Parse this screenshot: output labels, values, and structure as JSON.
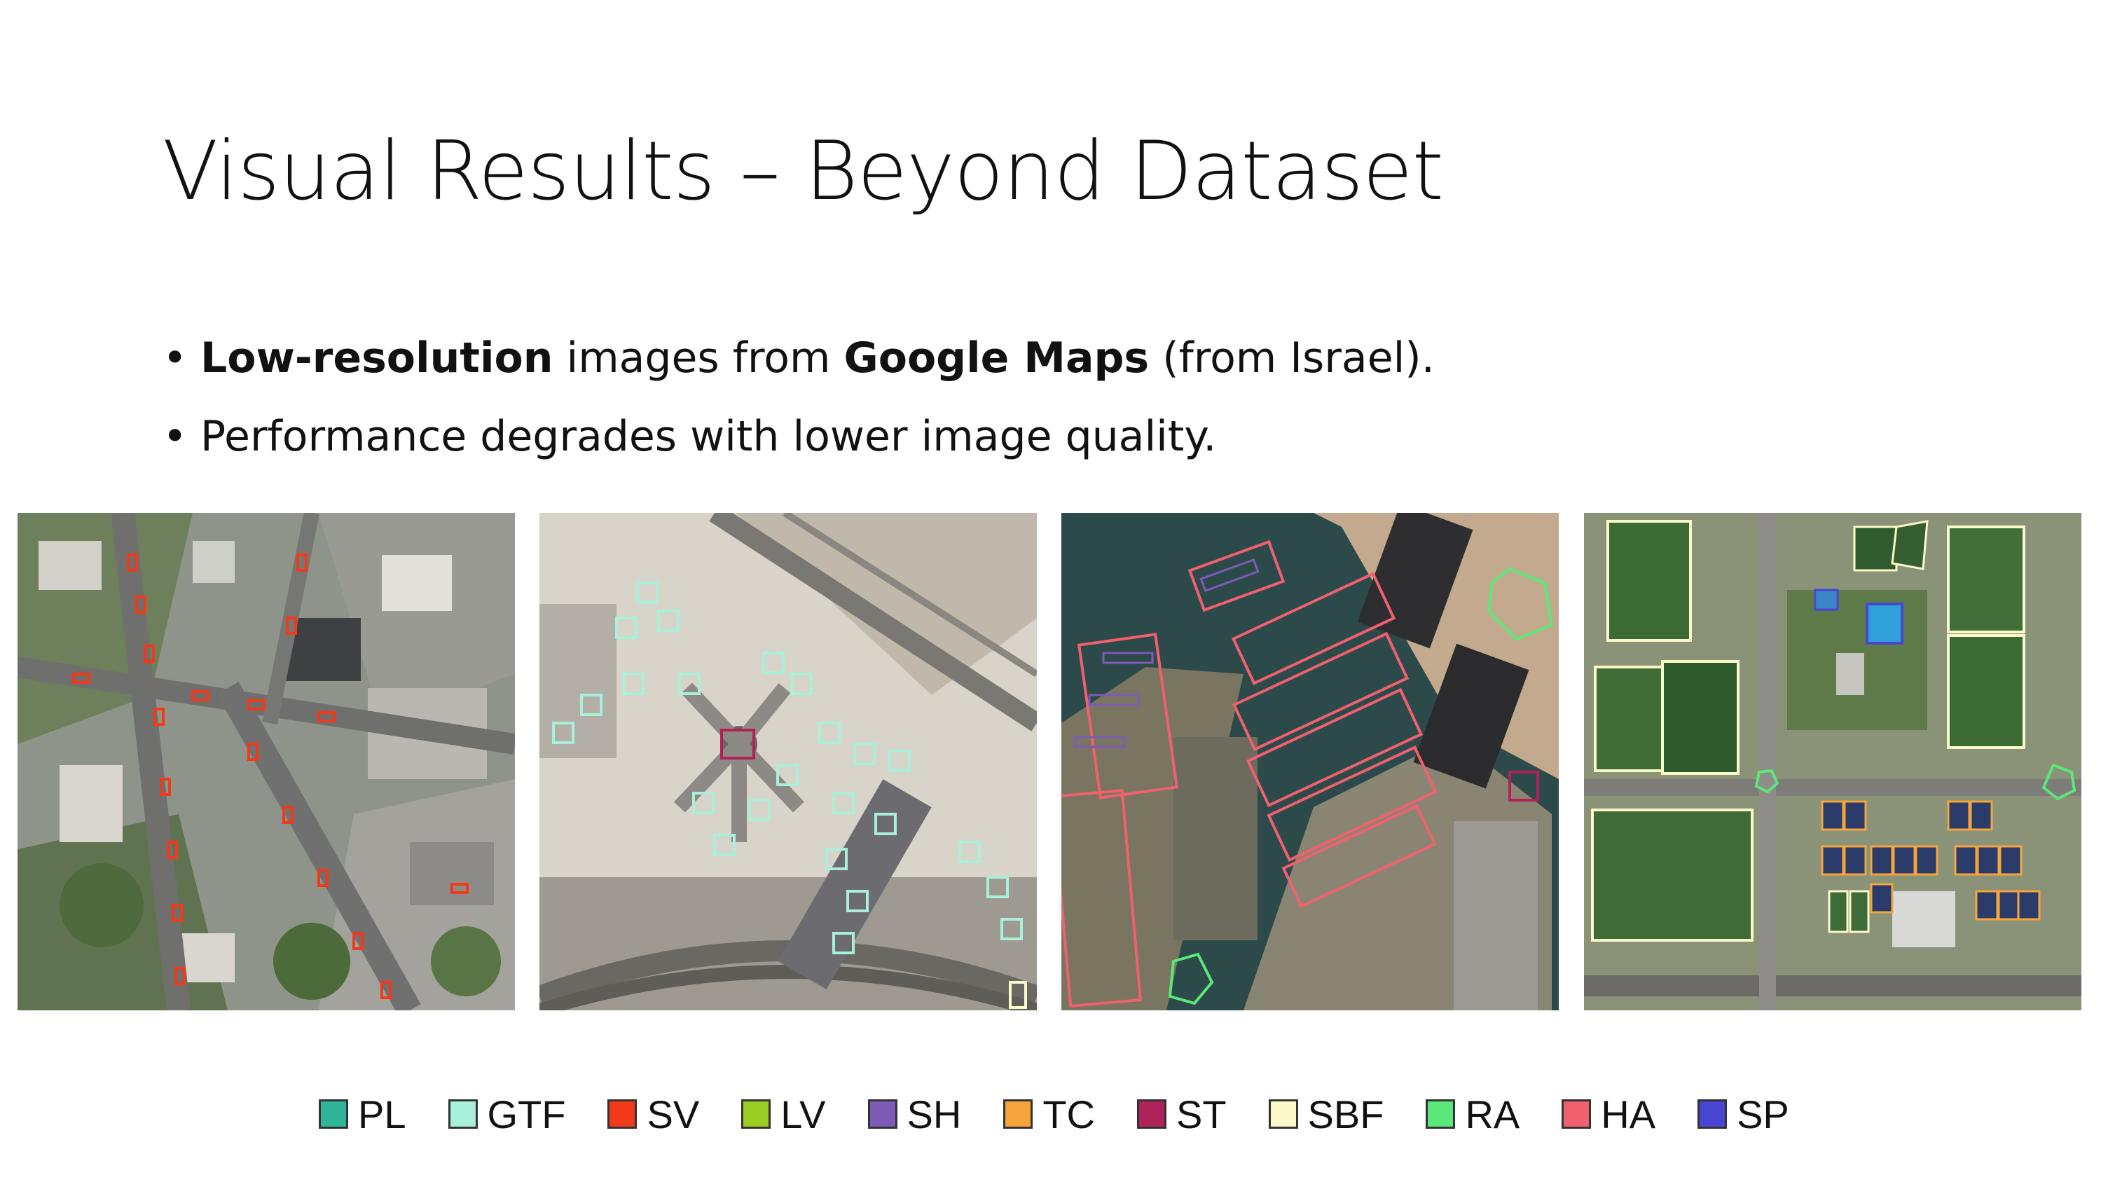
{
  "slide": {
    "title": "Visual Results – Beyond Dataset",
    "bullets": [
      {
        "bold1": "Low-resolution",
        "text1": " images from ",
        "bold2": "Google Maps",
        "text2": " (from Israel)."
      },
      {
        "text": "Performance degrades with lower image quality."
      }
    ],
    "bullet_glyph": "•"
  },
  "panels": [
    {
      "scene": "dense-urban-intersection"
    },
    {
      "scene": "airport-terminal"
    },
    {
      "scene": "marina-harbor"
    },
    {
      "scene": "sports-fields-complex"
    }
  ],
  "legend": [
    {
      "label": "PL",
      "color": "#2fb59a"
    },
    {
      "label": "GTF",
      "color": "#a8f0d9"
    },
    {
      "label": "SV",
      "color": "#f03a1a"
    },
    {
      "label": "LV",
      "color": "#9ccf24"
    },
    {
      "label": "SH",
      "color": "#7e5bb6"
    },
    {
      "label": "TC",
      "color": "#f7a43a"
    },
    {
      "label": "ST",
      "color": "#b0235a"
    },
    {
      "label": "SBF",
      "color": "#fbf8c9"
    },
    {
      "label": "RA",
      "color": "#5be77a"
    },
    {
      "label": "HA",
      "color": "#f0606e"
    },
    {
      "label": "SP",
      "color": "#4a46d4"
    }
  ]
}
